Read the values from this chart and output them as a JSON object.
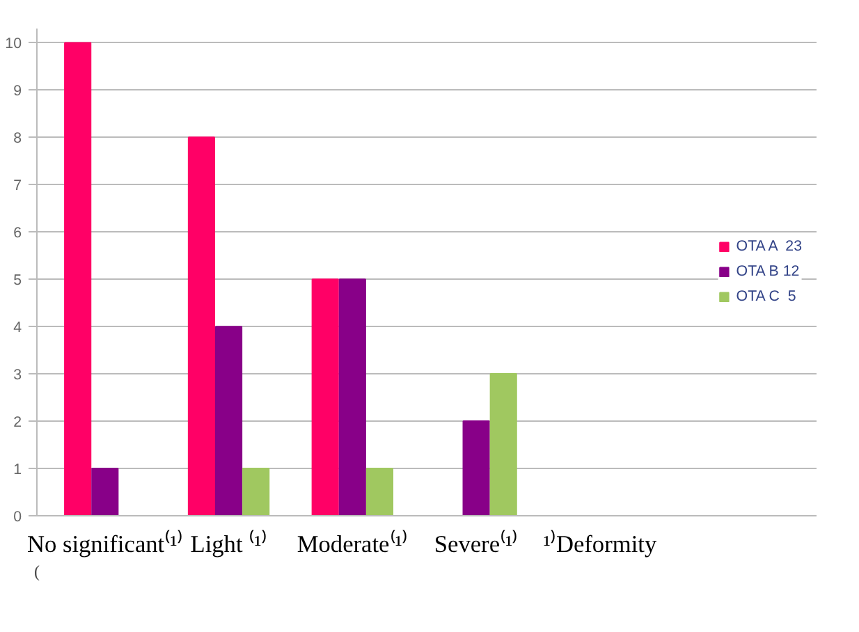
{
  "chart_data": {
    "type": "bar",
    "categories": [
      "No significant⁽¹⁾",
      "Light ⁽¹⁾",
      "Moderate⁽¹⁾",
      "Severe⁽¹⁾",
      "¹⁾Deformity"
    ],
    "series": [
      {
        "name": "OTA A  23",
        "color": "#ff0066",
        "values": [
          10,
          8,
          5,
          0,
          null
        ]
      },
      {
        "name": "OTA B 12",
        "color": "#880088",
        "values": [
          1,
          4,
          5,
          2,
          null
        ]
      },
      {
        "name": "OTA C  5",
        "color": "#a0c860",
        "values": [
          0,
          1,
          1,
          3,
          null
        ]
      }
    ],
    "ylim": [
      0,
      10.3
    ],
    "yticks": [
      0,
      1,
      2,
      3,
      4,
      5,
      6,
      7,
      8,
      9,
      10
    ],
    "grid": "y",
    "legend": "right",
    "annotations": [
      "("
    ]
  }
}
